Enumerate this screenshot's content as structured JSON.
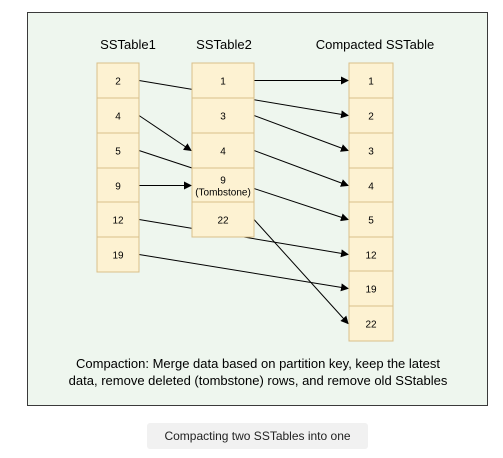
{
  "columns": [
    {
      "id": "sstable1",
      "title": "SSTable1",
      "rows": [
        "2",
        "4",
        "5",
        "9",
        "12",
        "19"
      ]
    },
    {
      "id": "sstable2",
      "title": "SSTable2",
      "rows": [
        "1",
        "3",
        "4",
        "9\n(Tombstone)",
        "22"
      ]
    },
    {
      "id": "compacted",
      "title": "Compacted SSTable",
      "rows": [
        "1",
        "2",
        "3",
        "4",
        "5",
        "12",
        "19",
        "22"
      ]
    }
  ],
  "edges": [
    {
      "from": [
        "sstable1",
        0
      ],
      "to": [
        "compacted",
        1
      ]
    },
    {
      "from": [
        "sstable1",
        1
      ],
      "to": [
        "sstable2",
        2
      ]
    },
    {
      "from": [
        "sstable1",
        2
      ],
      "to": [
        "compacted",
        4
      ]
    },
    {
      "from": [
        "sstable1",
        3
      ],
      "to": [
        "sstable2",
        3
      ]
    },
    {
      "from": [
        "sstable1",
        4
      ],
      "to": [
        "compacted",
        5
      ]
    },
    {
      "from": [
        "sstable1",
        5
      ],
      "to": [
        "compacted",
        6
      ]
    },
    {
      "from": [
        "sstable2",
        0
      ],
      "to": [
        "compacted",
        0
      ]
    },
    {
      "from": [
        "sstable2",
        1
      ],
      "to": [
        "compacted",
        2
      ]
    },
    {
      "from": [
        "sstable2",
        2
      ],
      "to": [
        "compacted",
        3
      ]
    },
    {
      "from": [
        "sstable2",
        4
      ],
      "to": [
        "compacted",
        7
      ]
    }
  ],
  "note": {
    "line1": "Compaction: Merge data based on partition key, keep the latest",
    "line2": "data, remove deleted (tombstone) rows, and remove old SStables"
  },
  "caption": "Compacting two SSTables into one",
  "colors": {
    "cell_fill": "#fdf2d2",
    "cell_stroke": "#d9c08a",
    "panel_bg": "#eef6ee",
    "line": "#000000"
  }
}
